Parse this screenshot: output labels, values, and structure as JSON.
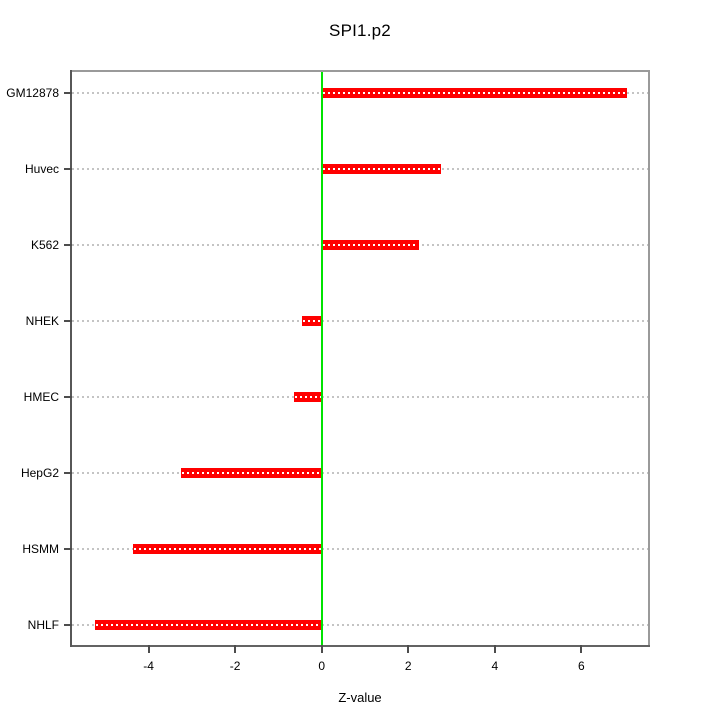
{
  "title": "SPI1.p2",
  "colors": {
    "bar": "#ff0000",
    "zero_line": "#00e300",
    "grid_dots": "#c4c4c4",
    "grid_dots_on_bar": "#ffffff",
    "axis_border_light": "#9a9a9a",
    "axis_border_dark": "#575757",
    "tick": "#4d4d4d",
    "text": "#000000",
    "background": "#ffffff"
  },
  "chart_data": {
    "type": "bar",
    "orientation": "horizontal",
    "title": "SPI1.p2",
    "xlabel": "Z-value",
    "ylabel": "",
    "categories": [
      "GM12878",
      "Huvec",
      "K562",
      "NHEK",
      "HMEC",
      "HepG2",
      "HSMM",
      "NHLF"
    ],
    "values": [
      7.05,
      2.75,
      2.25,
      -0.45,
      -0.65,
      -3.25,
      -4.35,
      -5.25
    ],
    "xlim": [
      -5.77,
      7.54
    ],
    "xticks": [
      -4,
      -2,
      0,
      2,
      4,
      6
    ],
    "reference_line_x": 0,
    "grid": "horizontal dotted line at each category",
    "legend": "none"
  }
}
